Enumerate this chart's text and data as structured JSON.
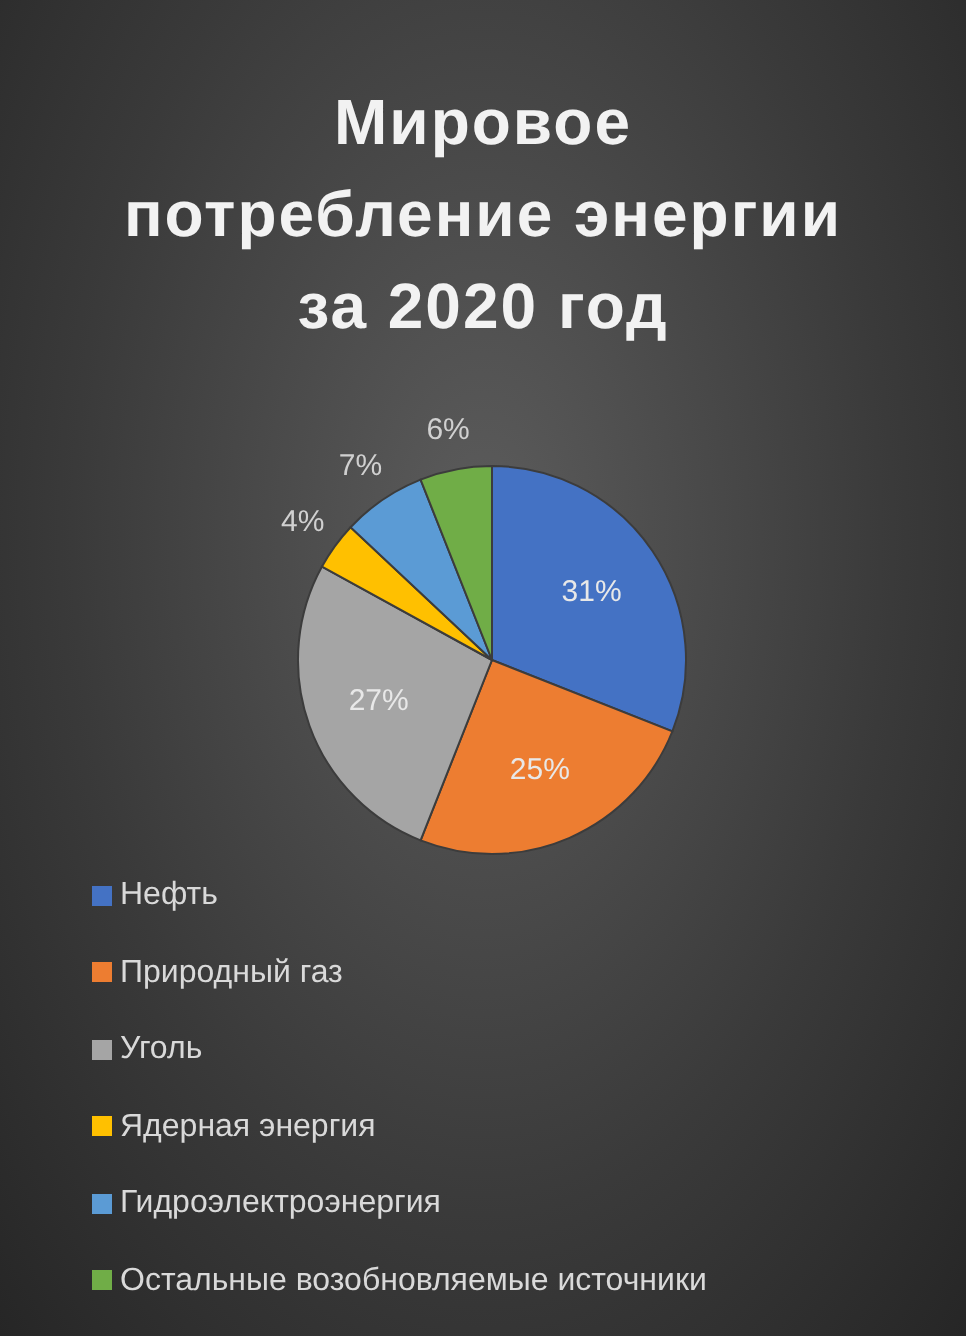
{
  "chart_data": {
    "type": "pie",
    "title": "Мировое потребление энергии за 2020 год",
    "categories": [
      "Нефть",
      "Природный газ",
      "Уголь",
      "Ядерная энергия",
      "Гидроэлектроэнергия",
      "Остальные возобновляемые источники"
    ],
    "values": [
      31,
      25,
      27,
      4,
      7,
      6
    ],
    "colors": [
      "#4472c4",
      "#ed7d31",
      "#a5a5a5",
      "#ffc000",
      "#5b9bd5",
      "#70ad47"
    ],
    "value_labels": [
      "31%",
      "25%",
      "27%",
      "4%",
      "7%",
      "6%"
    ],
    "legend": "bottom"
  }
}
